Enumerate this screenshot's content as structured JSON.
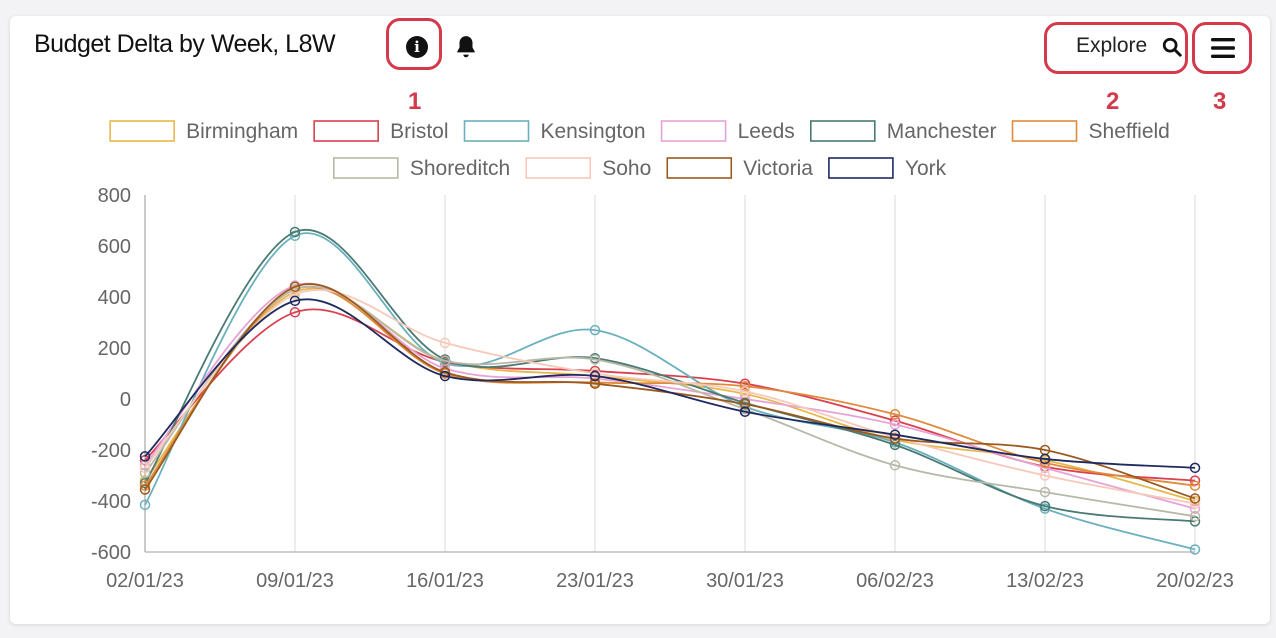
{
  "header": {
    "title": "Budget Delta by Week, L8W",
    "explore_label": "Explore",
    "icons": [
      "info-icon",
      "bell-icon",
      "search-icon",
      "menu-icon"
    ]
  },
  "callouts": [
    "1",
    "2",
    "3"
  ],
  "colors": {
    "callout": "#d33a4b",
    "grid": "#e6e6e6"
  },
  "chart_data": {
    "type": "line",
    "title": "",
    "xlabel": "",
    "ylabel": "",
    "x": [
      "02/01/23",
      "09/01/23",
      "16/01/23",
      "23/01/23",
      "30/01/23",
      "06/02/23",
      "13/02/23",
      "20/02/23"
    ],
    "ylim": [
      -600,
      800
    ],
    "yticks": [
      800,
      600,
      400,
      200,
      0,
      -200,
      -400,
      -600
    ],
    "grid": "vertical",
    "legend": "top",
    "smooth": true,
    "series": [
      {
        "name": "Birmingham",
        "color": "#e6b84a",
        "values": [
          -320,
          420,
          150,
          90,
          20,
          -160,
          -240,
          -400
        ]
      },
      {
        "name": "Bristol",
        "color": "#d9414f",
        "values": [
          -240,
          340,
          145,
          110,
          60,
          -85,
          -265,
          -320
        ]
      },
      {
        "name": "Kensington",
        "color": "#6ab0bd",
        "values": [
          -415,
          640,
          140,
          270,
          -30,
          -170,
          -430,
          -590
        ]
      },
      {
        "name": "Leeds",
        "color": "#e8a3d6",
        "values": [
          -260,
          445,
          120,
          80,
          0,
          -100,
          -270,
          -430
        ]
      },
      {
        "name": "Manchester",
        "color": "#4a7a72",
        "values": [
          -330,
          655,
          155,
          160,
          -15,
          -180,
          -420,
          -480
        ]
      },
      {
        "name": "Sheffield",
        "color": "#e08a3c",
        "values": [
          -340,
          430,
          100,
          65,
          50,
          -60,
          -250,
          -340
        ]
      },
      {
        "name": "Shoreditch",
        "color": "#b8b8a8",
        "values": [
          -290,
          430,
          150,
          155,
          -40,
          -260,
          -365,
          -460
        ]
      },
      {
        "name": "Soho",
        "color": "#f7c9b8",
        "values": [
          -270,
          410,
          220,
          100,
          30,
          -150,
          -300,
          -410
        ]
      },
      {
        "name": "Victoria",
        "color": "#9a5a1f",
        "values": [
          -355,
          440,
          105,
          60,
          -20,
          -155,
          -200,
          -390
        ]
      },
      {
        "name": "York",
        "color": "#1f2a5e",
        "values": [
          -225,
          385,
          90,
          90,
          -50,
          -140,
          -235,
          -270
        ]
      }
    ]
  }
}
